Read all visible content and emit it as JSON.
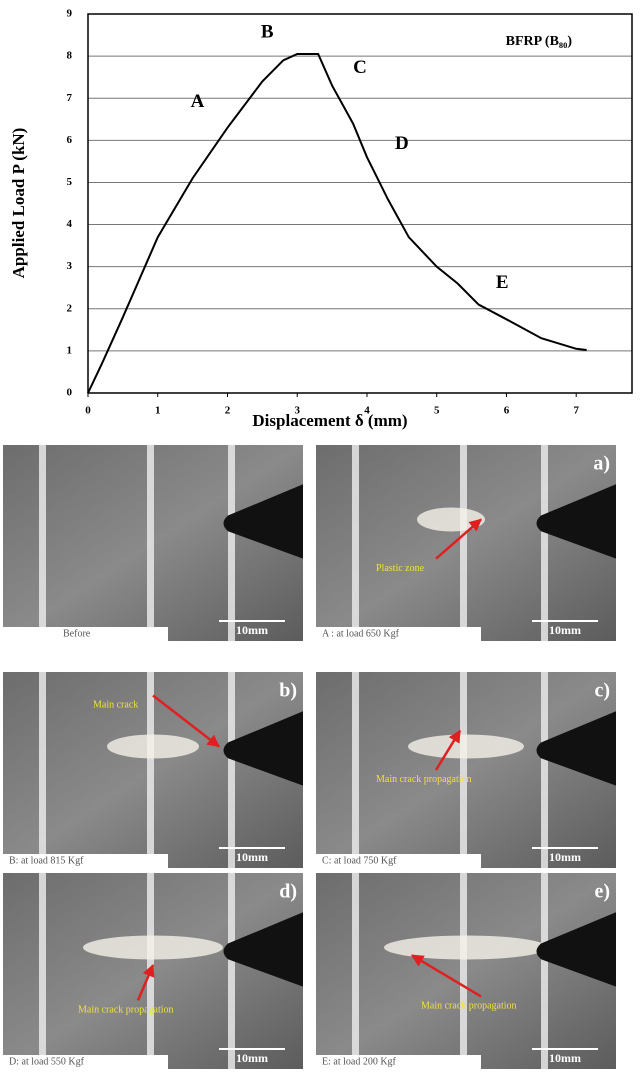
{
  "chart_data": {
    "type": "line",
    "x_label": "Displacement δ (mm)",
    "y_label": "Applied Load P (kN)",
    "series": [
      {
        "name": "BFRP (B₈₀)",
        "color": "#000000",
        "x": [
          0,
          0.2,
          0.5,
          1,
          1.5,
          2,
          2.5,
          2.8,
          3,
          3.3,
          3.5,
          3.8,
          4,
          4.3,
          4.6,
          5,
          5.3,
          5.6,
          6,
          6.5,
          7,
          7.15
        ],
        "values": [
          0,
          0.7,
          1.8,
          3.7,
          5.1,
          6.3,
          7.4,
          7.9,
          8.05,
          8.05,
          7.3,
          6.4,
          5.6,
          4.6,
          3.7,
          3,
          2.6,
          2.1,
          1.75,
          1.3,
          1.05,
          1.02
        ]
      }
    ],
    "annotations": [
      {
        "text": "A",
        "x": 1.57,
        "y": 6.9
      },
      {
        "text": "B",
        "x": 2.57,
        "y": 8.55
      },
      {
        "text": "C",
        "x": 3.9,
        "y": 7.7
      },
      {
        "text": "D",
        "x": 4.5,
        "y": 5.9
      },
      {
        "text": "E",
        "x": 5.94,
        "y": 2.6
      }
    ],
    "xlim": [
      0,
      7.8
    ],
    "xticks": [
      0,
      1,
      2,
      3,
      4,
      5,
      6,
      7
    ],
    "ylim": [
      0,
      9
    ],
    "yticks": [
      0,
      1,
      2,
      3,
      4,
      5,
      6,
      7,
      8,
      9
    ],
    "grid": true,
    "legend": "top-right"
  },
  "photos": [
    {
      "caption": "Before",
      "scale": "10mm"
    },
    {
      "tag": "a)",
      "caption": "A : at load 650 Kgf",
      "scale": "10mm",
      "note": "Plastic zone"
    },
    {
      "tag": "b)",
      "caption": "B: at load 815 Kgf",
      "scale": "10mm",
      "note": "Main crack"
    },
    {
      "tag": "c)",
      "caption": "C: at load 750 Kgf",
      "scale": "10mm",
      "note": "Main crack propagation"
    },
    {
      "tag": "d)",
      "caption": "D: at load 550 Kgf",
      "scale": "10mm",
      "note": "Main crack propagation"
    },
    {
      "tag": "e)",
      "caption": "E: at load 200 Kgf",
      "scale": "10mm",
      "note": "Main crack propagation"
    }
  ]
}
